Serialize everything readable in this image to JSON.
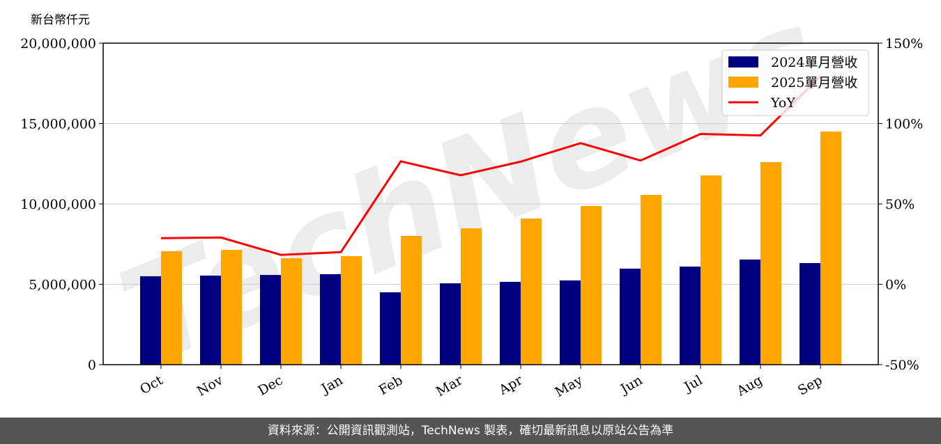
{
  "chart_data": {
    "type": "bar",
    "title": "",
    "ylabel": "新台幣仟元",
    "xlabel": "",
    "categories": [
      "Oct",
      "Nov",
      "Dec",
      "Jan",
      "Feb",
      "Mar",
      "Apr",
      "May",
      "Jun",
      "Jul",
      "Aug",
      "Sep"
    ],
    "series": [
      {
        "name": "2024單月營收",
        "type": "bar",
        "color": "#000080",
        "axis": "left",
        "values": [
          5500000,
          5540000,
          5580000,
          5630000,
          4500000,
          5060000,
          5150000,
          5240000,
          5970000,
          6100000,
          6540000,
          6320000
        ]
      },
      {
        "name": "2025單月營收",
        "type": "bar",
        "color": "#FFA500",
        "axis": "left",
        "values": [
          7060000,
          7140000,
          6620000,
          6750000,
          8010000,
          8480000,
          9090000,
          9870000,
          10560000,
          11770000,
          12600000,
          14500000
        ]
      },
      {
        "name": "YoY",
        "type": "line",
        "color": "#FF0000",
        "axis": "right",
        "values": [
          28.7,
          29.1,
          18.3,
          20.0,
          76.5,
          67.8,
          76.3,
          87.8,
          77.0,
          93.5,
          92.6,
          129.4
        ]
      }
    ],
    "ylim": [
      0,
      20000000
    ],
    "y_ticks": [
      "0",
      "5,000,000",
      "10,000,000",
      "15,000,000",
      "20,000,000"
    ],
    "y2lim": [
      -50,
      150
    ],
    "y2_ticks": [
      "-50%",
      "0%",
      "50%",
      "100%",
      "150%"
    ],
    "grid": "horizontal",
    "legend_position": "top-right"
  },
  "watermark": "TechNews",
  "footer": "資料來源：公開資訊觀測站，TechNews 製表，確切最新訊息以原站公告為準"
}
